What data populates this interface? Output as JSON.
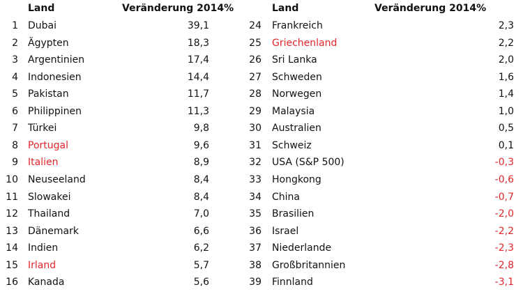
{
  "left": {
    "header": {
      "land": "Land",
      "change": "Veränderung 2014%"
    },
    "rows": [
      {
        "rank": 1,
        "land": "Dubai",
        "value": "39,1"
      },
      {
        "rank": 2,
        "land": "Ägypten",
        "value": "18,3"
      },
      {
        "rank": 3,
        "land": "Argentinien",
        "value": "17,4"
      },
      {
        "rank": 4,
        "land": "Indonesien",
        "value": "14,4"
      },
      {
        "rank": 5,
        "land": "Pakistan",
        "value": "11,7"
      },
      {
        "rank": 6,
        "land": "Philippinen",
        "value": "11,3"
      },
      {
        "rank": 7,
        "land": "Türkei",
        "value": "9,8"
      },
      {
        "rank": 8,
        "land": "Portugal",
        "value": "9,6",
        "land_color": "#e3262b"
      },
      {
        "rank": 9,
        "land": "Italien",
        "value": "8,9",
        "land_color": "#e3262b"
      },
      {
        "rank": 10,
        "land": "Neuseeland",
        "value": "8,4"
      },
      {
        "rank": 11,
        "land": "Slowakei",
        "value": "8,4"
      },
      {
        "rank": 12,
        "land": "Thailand",
        "value": "7,0"
      },
      {
        "rank": 13,
        "land": "Dänemark",
        "value": "6,6"
      },
      {
        "rank": 14,
        "land": "Indien",
        "value": "6,2"
      },
      {
        "rank": 15,
        "land": "Irland",
        "value": "5,7",
        "land_color": "#e3262b"
      },
      {
        "rank": 16,
        "land": "Kanada",
        "value": "5,6"
      }
    ]
  },
  "right": {
    "header": {
      "land": "Land",
      "change": "Veränderung 2014%"
    },
    "rows": [
      {
        "rank": 24,
        "land": "Frankreich",
        "value": "2,3"
      },
      {
        "rank": 25,
        "land": "Griechenland",
        "value": "2,2",
        "land_color": "#e3262b"
      },
      {
        "rank": 26,
        "land": "Sri Lanka",
        "value": "2,0"
      },
      {
        "rank": 27,
        "land": "Schweden",
        "value": "1,6"
      },
      {
        "rank": 28,
        "land": "Norwegen",
        "value": "1,4"
      },
      {
        "rank": 29,
        "land": "Malaysia",
        "value": "1,0"
      },
      {
        "rank": 30,
        "land": "Australien",
        "value": "0,5"
      },
      {
        "rank": 31,
        "land": "Schweiz",
        "value": "0,1"
      },
      {
        "rank": 32,
        "land": "USA (S&P 500)",
        "value": "-0,3"
      },
      {
        "rank": 33,
        "land": "Hongkong",
        "value": "-0,6"
      },
      {
        "rank": 34,
        "land": "China",
        "value": "-0,7"
      },
      {
        "rank": 35,
        "land": "Brasilien",
        "value": "-2,0"
      },
      {
        "rank": 36,
        "land": "Israel",
        "value": "-2,2"
      },
      {
        "rank": 37,
        "land": "Niederlande",
        "value": "-2,3"
      },
      {
        "rank": 38,
        "land": "Großbritannien",
        "value": "-2,8"
      },
      {
        "rank": 39,
        "land": "Finnland",
        "value": "-3,1"
      }
    ]
  }
}
